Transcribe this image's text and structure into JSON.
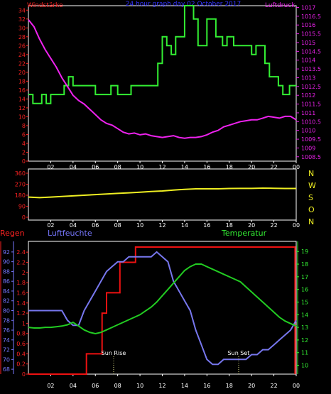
{
  "chart_data": [
    {
      "type": "line",
      "title": "24 hour graph day  02 October 2017",
      "left_label": "Windstärke",
      "right_label": "Luftdruck",
      "x_ticks": [
        "02",
        "04",
        "06",
        "08",
        "10",
        "12",
        "14",
        "16",
        "18",
        "20",
        "22",
        "00"
      ],
      "y_left_ticks": [
        "0",
        "2",
        "4",
        "6",
        "8",
        "10",
        "12",
        "14",
        "16",
        "18",
        "20",
        "22",
        "24",
        "26",
        "28",
        "30",
        "32",
        "34"
      ],
      "y_right_ticks": [
        "1008.5",
        "1009",
        "1009.5",
        "1010",
        "1010.5",
        "1011",
        "1011.5",
        "1012",
        "1012.5",
        "1013",
        "1013.5",
        "1014",
        "1014.5",
        "1015",
        "1015.5",
        "1016",
        "1016.5",
        "1017"
      ],
      "ylim_left": [
        0,
        35
      ],
      "ylim_right": [
        1008.25,
        1017.1
      ],
      "series": [
        {
          "color": "#33ee33",
          "axis": "left",
          "x": [
            0,
            0.4,
            0.4,
            1.2,
            1.2,
            1.6,
            1.6,
            2.0,
            2.0,
            3.2,
            3.2,
            3.6,
            3.6,
            4.0,
            4.0,
            6.0,
            6.0,
            7.4,
            7.4,
            8.0,
            8.0,
            9.2,
            9.2,
            9.6,
            9.6,
            11.6,
            11.6,
            12.0,
            12.0,
            12.4,
            12.4,
            12.8,
            12.8,
            13.2,
            13.2,
            14.0,
            14.0,
            14.8,
            14.8,
            15.2,
            15.2,
            16.0,
            16.0,
            16.8,
            16.8,
            17.4,
            17.4,
            17.8,
            17.8,
            18.4,
            18.4,
            18.8,
            18.8,
            20.0,
            20.0,
            20.4,
            20.4,
            21.2,
            21.2,
            21.6,
            21.6,
            22.4,
            22.4,
            22.8,
            22.8,
            23.4,
            23.4,
            23.8,
            23.8,
            24.0
          ],
          "y": [
            15,
            15,
            13,
            13,
            15,
            15,
            13,
            13,
            15,
            15,
            17,
            17,
            19,
            19,
            17,
            17,
            15,
            15,
            17,
            17,
            15,
            15,
            17,
            17,
            17,
            17,
            22,
            22,
            28,
            28,
            26,
            26,
            24,
            24,
            28,
            28,
            35,
            35,
            32,
            32,
            26,
            26,
            32,
            32,
            28,
            28,
            26,
            26,
            28,
            28,
            26,
            26,
            26,
            26,
            24,
            24,
            26,
            26,
            22,
            22,
            19,
            19,
            17,
            17,
            15,
            15,
            17,
            17,
            17,
            17
          ]
        },
        {
          "color": "#ee22ee",
          "axis": "right",
          "x": [
            0,
            0.5,
            1,
            1.5,
            2,
            2.5,
            3,
            3.5,
            4,
            4.5,
            5,
            5.5,
            6,
            6.5,
            7,
            7.5,
            8,
            8.5,
            9,
            9.5,
            10,
            10.5,
            11,
            11.5,
            12,
            12.5,
            13,
            13.5,
            14,
            14.5,
            15,
            15.5,
            16,
            16.5,
            17,
            17.5,
            18,
            18.5,
            19,
            19.5,
            20,
            20.5,
            21,
            21.5,
            22,
            22.5,
            23,
            23.5,
            24
          ],
          "y": [
            1016.3,
            1015.9,
            1015.2,
            1014.6,
            1014.1,
            1013.6,
            1013.0,
            1012.5,
            1012.0,
            1011.7,
            1011.5,
            1011.2,
            1010.9,
            1010.6,
            1010.4,
            1010.3,
            1010.1,
            1009.9,
            1009.8,
            1009.85,
            1009.75,
            1009.8,
            1009.7,
            1009.65,
            1009.6,
            1009.65,
            1009.7,
            1009.6,
            1009.55,
            1009.6,
            1009.6,
            1009.65,
            1009.75,
            1009.9,
            1010.0,
            1010.2,
            1010.3,
            1010.4,
            1010.5,
            1010.55,
            1010.6,
            1010.6,
            1010.7,
            1010.8,
            1010.75,
            1010.7,
            1010.8,
            1010.8,
            1010.6
          ]
        }
      ]
    },
    {
      "type": "line",
      "x_ticks": [
        "02",
        "04",
        "06",
        "08",
        "10",
        "12",
        "14",
        "16",
        "18",
        "20",
        "22",
        "00"
      ],
      "y_left_ticks": [
        "0",
        "90",
        "180",
        "270",
        "360"
      ],
      "right_labels": [
        "N",
        "W",
        "S",
        "O",
        "N"
      ],
      "ylim": [
        0,
        360
      ],
      "series": [
        {
          "color": "#eeee22",
          "x": [
            0,
            1,
            2,
            3,
            4,
            5,
            6,
            7,
            8,
            9,
            10,
            11,
            12,
            13,
            14,
            15,
            16,
            17,
            18,
            19,
            20,
            21,
            22,
            23,
            24
          ],
          "y": [
            165,
            160,
            165,
            170,
            175,
            180,
            185,
            190,
            195,
            200,
            205,
            210,
            215,
            222,
            228,
            232,
            232,
            232,
            235,
            236,
            236,
            238,
            237,
            235,
            235
          ]
        }
      ]
    },
    {
      "type": "line",
      "left_label": "Regen",
      "mid_label": "Luftfeuchte",
      "right_label": "Temperatur",
      "annotations": [
        "Sun Rise",
        "Sun Set"
      ],
      "x_ticks": [
        "02",
        "04",
        "06",
        "08",
        "10",
        "12",
        "14",
        "16",
        "18",
        "20",
        "22",
        "00"
      ],
      "y_rain_ticks": [
        "0",
        "0.2",
        "0.4",
        "0.6",
        "0.8",
        "1",
        "1.2",
        "1.4",
        "1.6",
        "1.8",
        "2",
        "2.2",
        "2.4"
      ],
      "y_humidity_ticks": [
        "68",
        "70",
        "72",
        "74",
        "76",
        "78",
        "80",
        "82",
        "84",
        "86",
        "88",
        "90",
        "92"
      ],
      "y_temp_ticks": [
        "10",
        "11",
        "12",
        "13",
        "14",
        "15",
        "16",
        "17",
        "18",
        "19"
      ],
      "rain_ylim": [
        0,
        2.5
      ],
      "humidity_ylim": [
        67,
        93
      ],
      "temp_ylim": [
        9.3,
        19.35
      ],
      "series": [
        {
          "color": "#ee1111",
          "axis": "rain",
          "x": [
            0,
            5.2,
            5.2,
            6.6,
            6.6,
            7.0,
            7.0,
            8.2,
            8.2,
            9.6,
            9.6,
            10.0,
            10.0,
            23.9,
            23.9
          ],
          "y": [
            0,
            0,
            0.4,
            0.4,
            1.2,
            1.2,
            1.6,
            1.6,
            2.2,
            2.2,
            2.5,
            2.5,
            2.55,
            2.55,
            0
          ]
        },
        {
          "color": "#7777ee",
          "axis": "humidity",
          "x": [
            0,
            0.5,
            1,
            1.5,
            2,
            2.5,
            3,
            3.5,
            4,
            4.5,
            5,
            5.5,
            6,
            6.5,
            7,
            7.5,
            8,
            8.5,
            9,
            9.5,
            10,
            10.5,
            11,
            11.5,
            12,
            12.5,
            13,
            13.5,
            14,
            14.5,
            15,
            15.5,
            16,
            16.5,
            17,
            17.5,
            18,
            18.5,
            19,
            19.5,
            20,
            20.5,
            21,
            21.5,
            22,
            22.5,
            23,
            23.5,
            24
          ],
          "y": [
            80,
            80,
            80,
            80,
            80,
            80,
            80,
            78,
            77,
            77,
            80,
            82,
            84,
            86,
            88,
            89,
            90,
            90,
            91,
            91,
            91,
            91,
            91,
            92,
            91,
            90,
            86,
            84,
            82,
            80,
            76,
            73,
            70,
            69,
            69,
            70,
            70,
            70,
            70,
            70,
            71,
            71,
            72,
            72,
            73,
            74,
            75,
            76,
            78
          ]
        },
        {
          "color": "#22cc22",
          "axis": "temp",
          "x": [
            0,
            0.5,
            1,
            1.5,
            2,
            2.5,
            3,
            3.5,
            4,
            4.5,
            5,
            5.5,
            6,
            6.5,
            7,
            7.5,
            8,
            8.5,
            9,
            9.5,
            10,
            10.5,
            11,
            11.5,
            12,
            12.5,
            13,
            13.5,
            14,
            14.5,
            15,
            15.5,
            16,
            16.5,
            17,
            17.5,
            18,
            18.5,
            19,
            19.5,
            20,
            20.5,
            21,
            21.5,
            22,
            22.5,
            23,
            23.5,
            24
          ],
          "y": [
            13.0,
            12.95,
            12.95,
            13.0,
            13.0,
            13.05,
            13.1,
            13.2,
            13.4,
            13.1,
            12.8,
            12.6,
            12.5,
            12.6,
            12.8,
            13.0,
            13.2,
            13.4,
            13.6,
            13.8,
            14.0,
            14.3,
            14.6,
            15.0,
            15.5,
            16.0,
            16.5,
            17.0,
            17.5,
            17.8,
            18.0,
            18.0,
            17.8,
            17.6,
            17.4,
            17.2,
            17.0,
            16.8,
            16.6,
            16.2,
            15.8,
            15.4,
            15.0,
            14.6,
            14.2,
            13.8,
            13.5,
            13.3,
            13.1
          ]
        }
      ]
    }
  ]
}
